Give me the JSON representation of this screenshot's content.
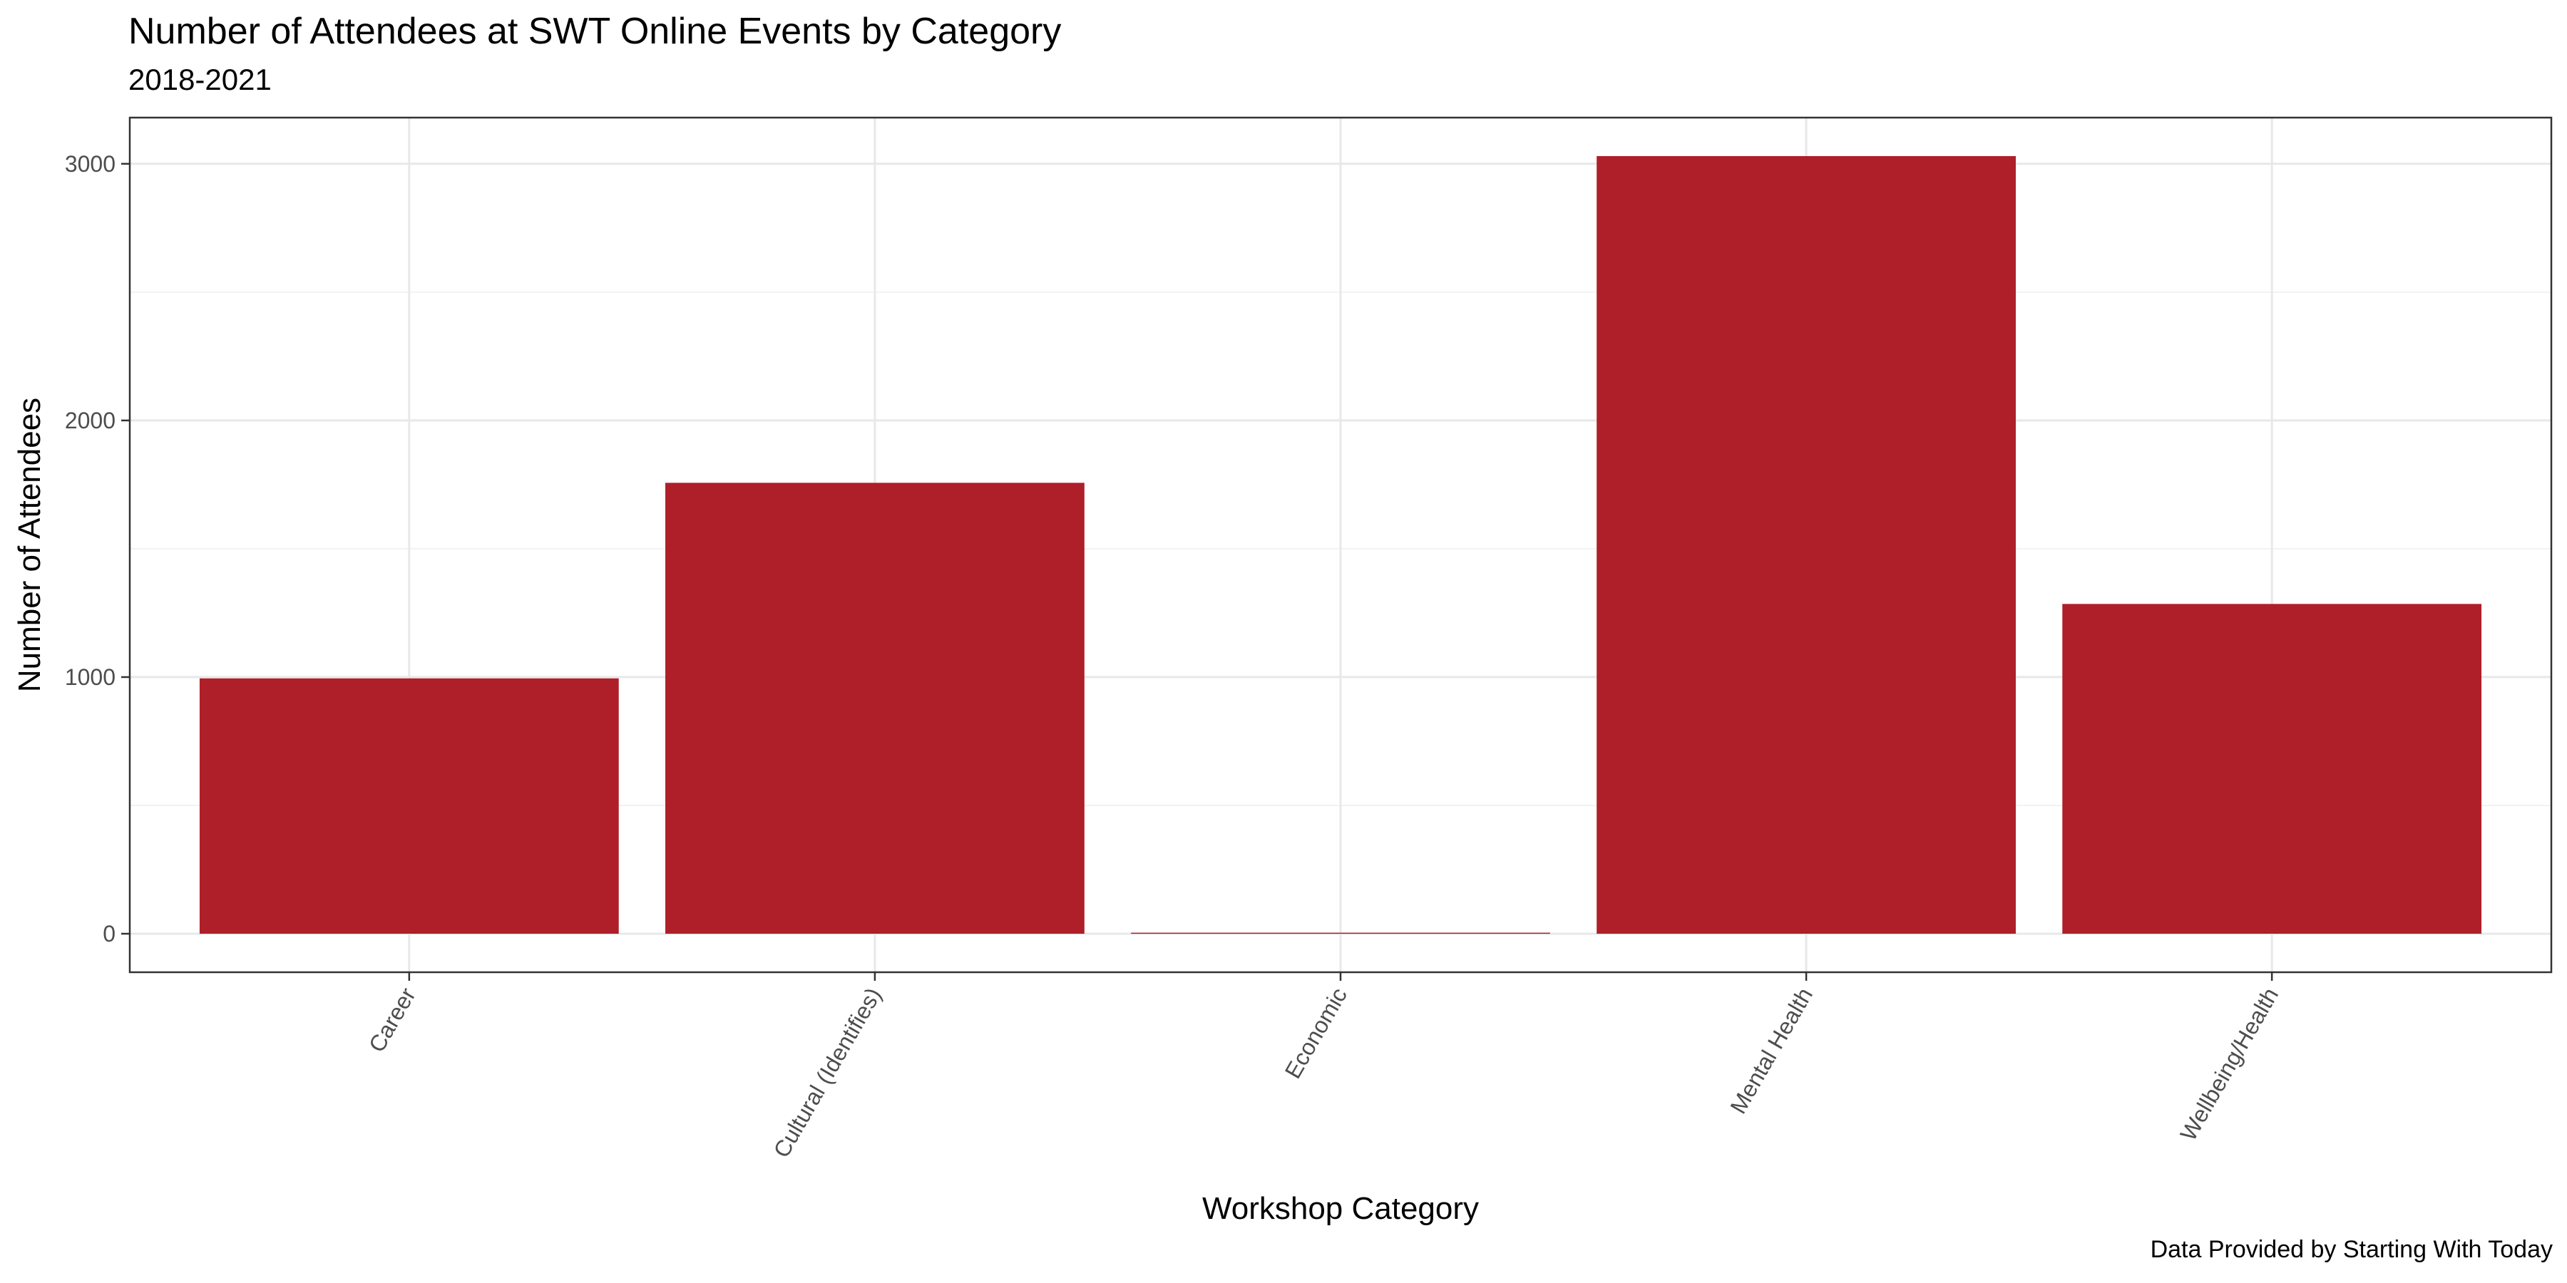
{
  "title": "Number of Attendees at SWT Online Events by Category",
  "subtitle": "2018-2021",
  "caption": "Data Provided by Starting With Today",
  "chart_data": {
    "type": "bar",
    "title": "Number of Attendees at SWT Online Events by Category",
    "subtitle": "2018-2021",
    "xlabel": "Workshop Category",
    "ylabel": "Number of Attendees",
    "categories": [
      "Career",
      "Cultural (Identifies)",
      "Economic",
      "Mental Health",
      "Wellbeing/Health"
    ],
    "values": [
      995,
      1757,
      4,
      3030,
      1285
    ],
    "ylim": [
      -150,
      3180
    ],
    "yticks": [
      0,
      1000,
      2000,
      3000
    ],
    "bar_color": "#AE1F29",
    "grid": true,
    "legend": "none"
  }
}
